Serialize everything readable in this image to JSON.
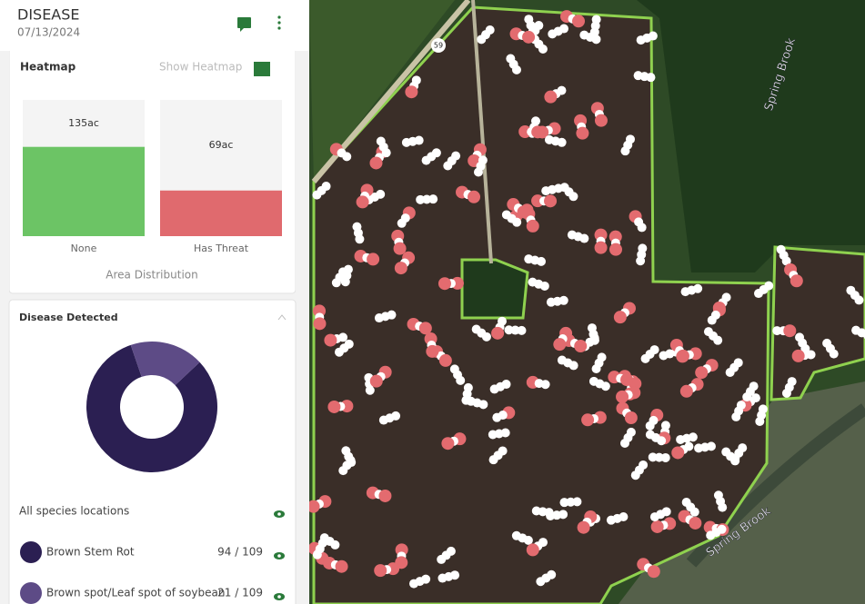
{
  "header": {
    "title": "DISEASE",
    "date": "07/13/2024"
  },
  "heatmap": {
    "title": "Heatmap",
    "toggle": "Show Heatmap",
    "caption": "Area Distribution"
  },
  "disease": {
    "title": "Disease Detected",
    "all_label": "All species locations"
  },
  "map": {
    "road": "59",
    "stream_labels": [
      "Spring Brook",
      "Spring Brook"
    ]
  },
  "chart_data": [
    {
      "type": "bar",
      "categories": [
        "None",
        "Has Threat"
      ],
      "values": [
        135,
        69
      ],
      "value_labels": [
        "135ac",
        "69ac"
      ],
      "colors": [
        "#6cc465",
        "#e06a6e"
      ],
      "ylim": [
        0,
        206
      ]
    },
    {
      "type": "pie",
      "categories": [
        "Brown Stem Rot",
        "Brown spot/Leaf spot of soybean"
      ],
      "values": [
        94,
        21
      ],
      "value_labels": [
        "94 / 109",
        "21 / 109"
      ],
      "colors": [
        "#2b1f52",
        "#5d4b86"
      ]
    }
  ]
}
